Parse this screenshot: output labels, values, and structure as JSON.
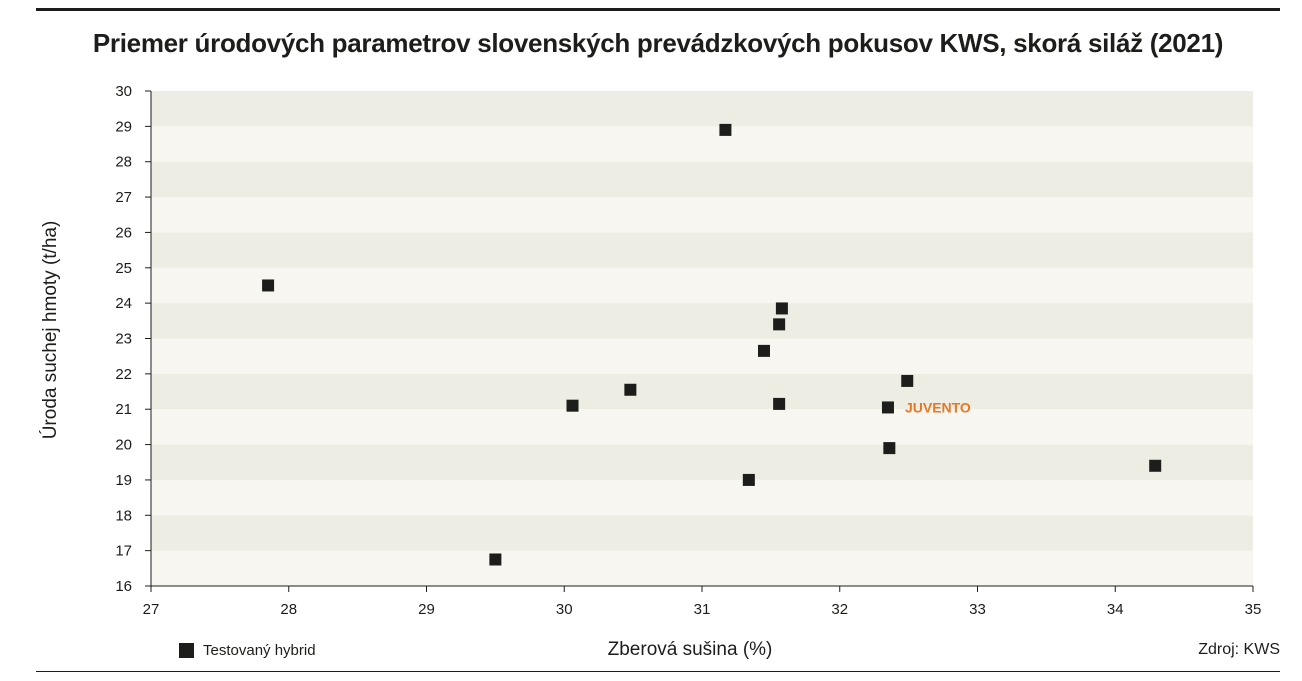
{
  "chart_data": {
    "type": "scatter",
    "title": "Priemer úrodových parametrov slovenských prevádzkových pokusov KWS, skorá siláž (2021)",
    "xlabel": "Zberová sušina (%)",
    "ylabel": "Úroda suchej hmoty (t/ha)",
    "xlim": [
      27,
      35
    ],
    "ylim": [
      16,
      30
    ],
    "xticks": [
      "27",
      "28",
      "29",
      "30",
      "31",
      "32",
      "33",
      "34",
      "35"
    ],
    "yticks": [
      "16",
      "17",
      "18",
      "19",
      "20",
      "21",
      "22",
      "23",
      "24",
      "25",
      "26",
      "27",
      "28",
      "29",
      "30"
    ],
    "grid": "alternating horizontal bands",
    "legend_placement": "bottom-left",
    "series": [
      {
        "name": "Testovaný hybrid",
        "color": "#1d1d1b",
        "marker": "square",
        "points": [
          {
            "x": 27.85,
            "y": 24.5
          },
          {
            "x": 29.5,
            "y": 16.75
          },
          {
            "x": 30.06,
            "y": 21.1
          },
          {
            "x": 30.48,
            "y": 21.55
          },
          {
            "x": 31.17,
            "y": 28.9
          },
          {
            "x": 31.34,
            "y": 19.0
          },
          {
            "x": 31.45,
            "y": 22.65
          },
          {
            "x": 31.56,
            "y": 21.15
          },
          {
            "x": 31.56,
            "y": 23.4
          },
          {
            "x": 31.58,
            "y": 23.85
          },
          {
            "x": 32.35,
            "y": 21.05
          },
          {
            "x": 32.36,
            "y": 19.9
          },
          {
            "x": 32.49,
            "y": 21.8
          },
          {
            "x": 34.29,
            "y": 19.4
          }
        ]
      }
    ],
    "annotations": [
      {
        "text": "JUVENTO",
        "x": 32.35,
        "y": 21.05,
        "color": "#e87722"
      }
    ]
  },
  "legend": {
    "label": "Testovaný hybrid"
  },
  "source": "Zdroj: KWS",
  "colors": {
    "band_light": "#f7f6f0",
    "band_dark": "#edede4",
    "ink": "#1d1d1b",
    "accent": "#e87722"
  }
}
